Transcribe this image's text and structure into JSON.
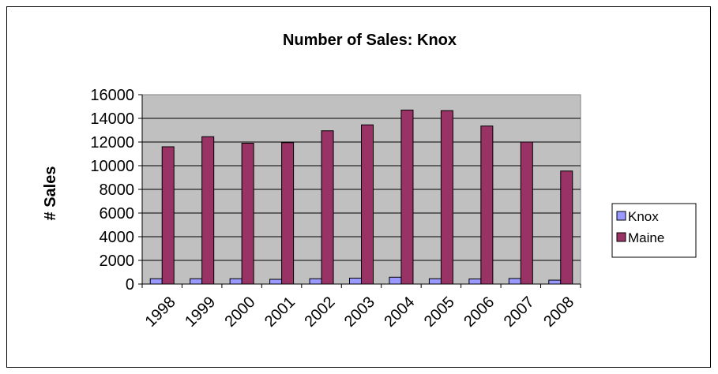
{
  "chart_data": {
    "type": "bar",
    "title": "Number of Sales: Knox",
    "xlabel": "",
    "ylabel": "# Sales",
    "categories": [
      "1998",
      "1999",
      "2000",
      "2001",
      "2002",
      "2003",
      "2004",
      "2005",
      "2006",
      "2007",
      "2008"
    ],
    "series": [
      {
        "name": "Knox",
        "color": "#9999ff",
        "values": [
          450,
          450,
          450,
          400,
          450,
          500,
          580,
          450,
          430,
          470,
          330
        ]
      },
      {
        "name": "Maine",
        "color": "#993366",
        "values": [
          11600,
          12450,
          11900,
          11950,
          12950,
          13450,
          14700,
          14650,
          13350,
          12000,
          9550
        ]
      }
    ],
    "ylim": [
      0,
      16000
    ],
    "yticks": [
      0,
      2000,
      4000,
      6000,
      8000,
      10000,
      12000,
      14000,
      16000
    ],
    "grid": true,
    "plot_background": "#c0c0c0",
    "legend_position": "right"
  }
}
